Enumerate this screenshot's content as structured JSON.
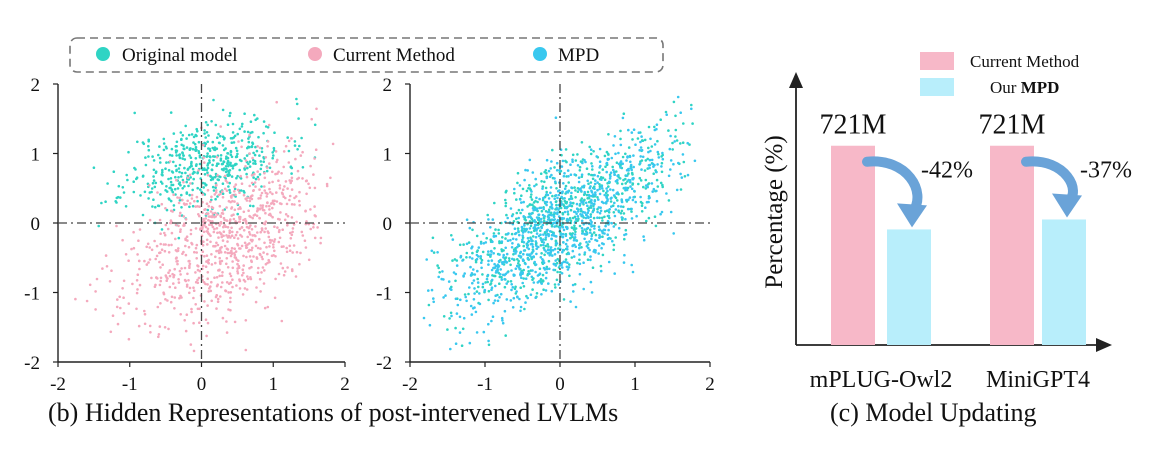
{
  "legend_top": {
    "items": [
      {
        "label": "Original model",
        "color": "#2fd4c4"
      },
      {
        "label": "Current Method",
        "color": "#f4a9bd"
      },
      {
        "label": "MPD",
        "color": "#39c8ef"
      }
    ]
  },
  "caption_b": "(b) Hidden Representations of  post-intervened LVLMs",
  "caption_c": "(c) Model Updating",
  "chart_data": [
    {
      "type": "scatter",
      "panel": "left",
      "xlim": [
        -2,
        2
      ],
      "ylim": [
        -2,
        2
      ],
      "x_ticks": [
        "-2",
        "-1",
        "0",
        "1",
        "2"
      ],
      "y_ticks": [
        "2",
        "1",
        "0",
        "-1",
        "-2"
      ],
      "grid": false,
      "reference_lines": [
        "x=0",
        "y=0"
      ],
      "series": [
        {
          "name": "Original model",
          "color": "#2fd4c4",
          "count": 520,
          "center": [
            0.05,
            0.85
          ],
          "spread": [
            0.55,
            0.35
          ],
          "corr": 0.35,
          "seed": 11
        },
        {
          "name": "Current Method",
          "color": "#f4a9bd",
          "count": 900,
          "center": [
            0.3,
            -0.25
          ],
          "spread": [
            0.7,
            0.6
          ],
          "corr": 0.45,
          "seed": 23
        }
      ]
    },
    {
      "type": "scatter",
      "panel": "middle",
      "xlim": [
        -2,
        2
      ],
      "ylim": [
        -2,
        2
      ],
      "x_ticks": [
        "-2",
        "-1",
        "0",
        "1",
        "2"
      ],
      "y_ticks": [
        "2",
        "1",
        "0",
        "-1",
        "-2"
      ],
      "grid": false,
      "reference_lines": [
        "x=0",
        "y=0"
      ],
      "series": [
        {
          "name": "Original model",
          "color": "#2fd4c4",
          "count": 700,
          "center": [
            0.05,
            0.1
          ],
          "spread": [
            0.7,
            0.6
          ],
          "corr": 0.7,
          "seed": 37
        },
        {
          "name": "MPD",
          "color": "#39c8ef",
          "count": 900,
          "center": [
            0.0,
            -0.05
          ],
          "spread": [
            0.75,
            0.65
          ],
          "corr": 0.72,
          "seed": 41
        }
      ]
    },
    {
      "type": "bar",
      "panel": "right",
      "ylabel": "Percentage (%)",
      "categories": [
        "mPLUG-Owl2",
        "MiniGPT4"
      ],
      "series": [
        {
          "name": "Current Method",
          "color": "#f7b8c8",
          "values": [
            100,
            100
          ]
        },
        {
          "name": "Our MPD",
          "color": "#b8eefb",
          "values": [
            58,
            63
          ]
        }
      ],
      "value_labels": [
        "721M",
        "721M"
      ],
      "reduction_labels": [
        "-42%",
        "-37%"
      ],
      "legend": {
        "placement": "top-right",
        "items": [
          {
            "name": "Current Method",
            "label_plain": "Current Method"
          },
          {
            "name": "Our MPD",
            "label_prefix": "Our ",
            "label_bold": "MPD"
          }
        ]
      },
      "ylim": [
        0,
        135
      ]
    }
  ]
}
